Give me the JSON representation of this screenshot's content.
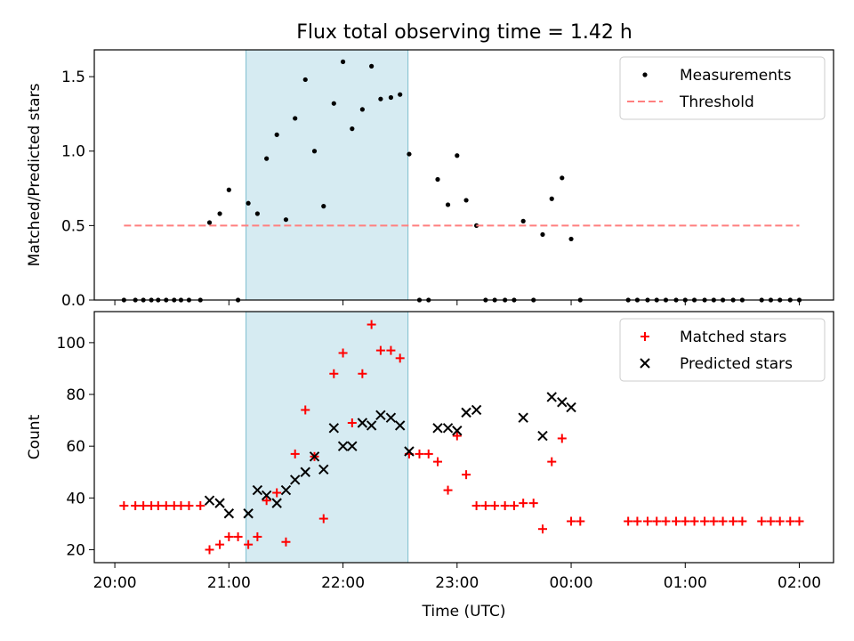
{
  "figure": {
    "title": "Flux total observing time = 1.42 h"
  },
  "chart_data": [
    {
      "type": "scatter",
      "panel": "top",
      "title": "Flux total observing time = 1.42 h",
      "ylabel": "Matched/Predicted stars",
      "xlabel": "",
      "x_unit": "hours since 20:00 UTC",
      "xlim": [
        -0.18,
        6.3
      ],
      "ylim": [
        0,
        1.68
      ],
      "yticks": [
        0.0,
        0.5,
        1.0,
        1.5
      ],
      "ytick_labels": [
        "0.0",
        "0.5",
        "1.0",
        "1.5"
      ],
      "grid": false,
      "legend": "top-right",
      "shaded_region": {
        "x_start": 1.15,
        "x_end": 2.57,
        "color": "#add8e6"
      },
      "series": [
        {
          "name": "Measurements",
          "marker": "dot",
          "color": "#000000",
          "points": [
            [
              0.08,
              0.0
            ],
            [
              0.18,
              0.0
            ],
            [
              0.25,
              0.0
            ],
            [
              0.32,
              0.0
            ],
            [
              0.38,
              0.0
            ],
            [
              0.45,
              0.0
            ],
            [
              0.52,
              0.0
            ],
            [
              0.58,
              0.0
            ],
            [
              0.65,
              0.0
            ],
            [
              0.75,
              0.0
            ],
            [
              0.83,
              0.52
            ],
            [
              0.92,
              0.58
            ],
            [
              1.0,
              0.74
            ],
            [
              1.08,
              0.0
            ],
            [
              1.17,
              0.65
            ],
            [
              1.25,
              0.58
            ],
            [
              1.33,
              0.95
            ],
            [
              1.42,
              1.11
            ],
            [
              1.5,
              0.54
            ],
            [
              1.58,
              1.22
            ],
            [
              1.67,
              1.48
            ],
            [
              1.75,
              1.0
            ],
            [
              1.83,
              0.63
            ],
            [
              1.92,
              1.32
            ],
            [
              2.0,
              1.6
            ],
            [
              2.08,
              1.15
            ],
            [
              2.17,
              1.28
            ],
            [
              2.25,
              1.57
            ],
            [
              2.33,
              1.35
            ],
            [
              2.42,
              1.36
            ],
            [
              2.5,
              1.38
            ],
            [
              2.58,
              0.98
            ],
            [
              2.67,
              0.0
            ],
            [
              2.75,
              0.0
            ],
            [
              2.83,
              0.81
            ],
            [
              2.92,
              0.64
            ],
            [
              3.0,
              0.97
            ],
            [
              3.08,
              0.67
            ],
            [
              3.17,
              0.5
            ],
            [
              3.25,
              0.0
            ],
            [
              3.33,
              0.0
            ],
            [
              3.42,
              0.0
            ],
            [
              3.5,
              0.0
            ],
            [
              3.58,
              0.53
            ],
            [
              3.67,
              0.0
            ],
            [
              3.75,
              0.44
            ],
            [
              3.83,
              0.68
            ],
            [
              3.92,
              0.82
            ],
            [
              4.0,
              0.41
            ],
            [
              4.08,
              0.0
            ],
            [
              4.5,
              0.0
            ],
            [
              4.58,
              0.0
            ],
            [
              4.67,
              0.0
            ],
            [
              4.75,
              0.0
            ],
            [
              4.83,
              0.0
            ],
            [
              4.92,
              0.0
            ],
            [
              5.0,
              0.0
            ],
            [
              5.08,
              0.0
            ],
            [
              5.17,
              0.0
            ],
            [
              5.25,
              0.0
            ],
            [
              5.33,
              0.0
            ],
            [
              5.42,
              0.0
            ],
            [
              5.5,
              0.0
            ],
            [
              5.67,
              0.0
            ],
            [
              5.75,
              0.0
            ],
            [
              5.83,
              0.0
            ],
            [
              5.92,
              0.0
            ],
            [
              6.0,
              0.0
            ]
          ]
        },
        {
          "name": "Threshold",
          "style": "dashed",
          "color": "#ff7f7f",
          "points": [
            [
              0.08,
              0.5
            ],
            [
              6.0,
              0.5
            ]
          ]
        }
      ]
    },
    {
      "type": "scatter",
      "panel": "bottom",
      "ylabel": "Count",
      "xlabel": "Time (UTC)",
      "x_unit": "hours since 20:00 UTC",
      "xlim": [
        -0.18,
        6.3
      ],
      "ylim": [
        15,
        112
      ],
      "yticks": [
        20,
        40,
        60,
        80,
        100
      ],
      "ytick_labels": [
        "20",
        "40",
        "60",
        "80",
        "100"
      ],
      "xticks": [
        0,
        1,
        2,
        3,
        4,
        5,
        6
      ],
      "xtick_labels": [
        "20:00",
        "21:00",
        "22:00",
        "23:00",
        "00:00",
        "01:00",
        "02:00"
      ],
      "grid": false,
      "legend": "top-right",
      "shaded_region": {
        "x_start": 1.15,
        "x_end": 2.57,
        "color": "#add8e6"
      },
      "series": [
        {
          "name": "Matched stars",
          "marker": "plus",
          "color": "#ff0000",
          "points": [
            [
              0.08,
              37
            ],
            [
              0.18,
              37
            ],
            [
              0.25,
              37
            ],
            [
              0.32,
              37
            ],
            [
              0.38,
              37
            ],
            [
              0.45,
              37
            ],
            [
              0.52,
              37
            ],
            [
              0.58,
              37
            ],
            [
              0.65,
              37
            ],
            [
              0.75,
              37
            ],
            [
              0.83,
              20
            ],
            [
              0.92,
              22
            ],
            [
              1.0,
              25
            ],
            [
              1.08,
              25
            ],
            [
              1.17,
              22
            ],
            [
              1.25,
              25
            ],
            [
              1.33,
              39
            ],
            [
              1.42,
              42
            ],
            [
              1.5,
              23
            ],
            [
              1.58,
              57
            ],
            [
              1.67,
              74
            ],
            [
              1.75,
              56
            ],
            [
              1.83,
              32
            ],
            [
              1.92,
              88
            ],
            [
              2.0,
              96
            ],
            [
              2.08,
              69
            ],
            [
              2.17,
              88
            ],
            [
              2.25,
              107
            ],
            [
              2.33,
              97
            ],
            [
              2.42,
              97
            ],
            [
              2.5,
              94
            ],
            [
              2.58,
              57
            ],
            [
              2.67,
              57
            ],
            [
              2.75,
              57
            ],
            [
              2.83,
              54
            ],
            [
              2.92,
              43
            ],
            [
              3.0,
              64
            ],
            [
              3.08,
              49
            ],
            [
              3.17,
              37
            ],
            [
              3.25,
              37
            ],
            [
              3.33,
              37
            ],
            [
              3.42,
              37
            ],
            [
              3.5,
              37
            ],
            [
              3.58,
              38
            ],
            [
              3.67,
              38
            ],
            [
              3.75,
              28
            ],
            [
              3.83,
              54
            ],
            [
              3.92,
              63
            ],
            [
              4.0,
              31
            ],
            [
              4.08,
              31
            ],
            [
              4.5,
              31
            ],
            [
              4.58,
              31
            ],
            [
              4.67,
              31
            ],
            [
              4.75,
              31
            ],
            [
              4.83,
              31
            ],
            [
              4.92,
              31
            ],
            [
              5.0,
              31
            ],
            [
              5.08,
              31
            ],
            [
              5.17,
              31
            ],
            [
              5.25,
              31
            ],
            [
              5.33,
              31
            ],
            [
              5.42,
              31
            ],
            [
              5.5,
              31
            ],
            [
              5.67,
              31
            ],
            [
              5.75,
              31
            ],
            [
              5.83,
              31
            ],
            [
              5.92,
              31
            ],
            [
              6.0,
              31
            ]
          ]
        },
        {
          "name": "Predicted stars",
          "marker": "x",
          "color": "#000000",
          "points": [
            [
              0.83,
              39
            ],
            [
              0.92,
              38
            ],
            [
              1.0,
              34
            ],
            [
              1.17,
              34
            ],
            [
              1.25,
              43
            ],
            [
              1.33,
              41
            ],
            [
              1.42,
              38
            ],
            [
              1.5,
              43
            ],
            [
              1.58,
              47
            ],
            [
              1.67,
              50
            ],
            [
              1.75,
              56
            ],
            [
              1.83,
              51
            ],
            [
              1.92,
              67
            ],
            [
              2.0,
              60
            ],
            [
              2.08,
              60
            ],
            [
              2.17,
              69
            ],
            [
              2.25,
              68
            ],
            [
              2.33,
              72
            ],
            [
              2.42,
              71
            ],
            [
              2.5,
              68
            ],
            [
              2.58,
              58
            ],
            [
              2.83,
              67
            ],
            [
              2.92,
              67
            ],
            [
              3.0,
              66
            ],
            [
              3.08,
              73
            ],
            [
              3.17,
              74
            ],
            [
              3.58,
              71
            ],
            [
              3.75,
              64
            ],
            [
              3.83,
              79
            ],
            [
              3.92,
              77
            ],
            [
              4.0,
              75
            ]
          ]
        }
      ]
    }
  ]
}
